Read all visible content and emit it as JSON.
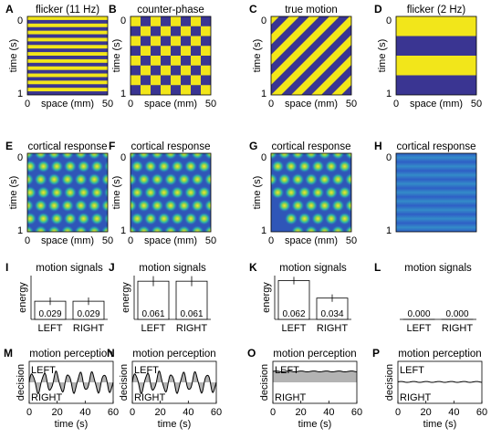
{
  "colors": {
    "yellow": "#f2e61a",
    "navy": "#3a3592",
    "gray": "#b3b3b3"
  },
  "axis_labels": {
    "time": "time (s)",
    "space": "space (mm)",
    "energy": "energy",
    "decision": "decision",
    "zero": "0",
    "one": "1",
    "fifty": "50"
  },
  "chart_data": [
    {
      "letter": "A",
      "title": "flicker (11 Hz)",
      "type": "heatmap",
      "pattern": "horizontal-stripes",
      "stripes": 11,
      "xlabel": "space (mm)",
      "ylabel": "time (s)",
      "xlim": [
        0,
        50
      ],
      "ylim": [
        0,
        1
      ]
    },
    {
      "letter": "B",
      "title": "counter-phase",
      "type": "heatmap",
      "pattern": "checkerboard",
      "cells": 8,
      "xlabel": "space (mm)",
      "ylabel": "time (s)",
      "xlim": [
        0,
        50
      ],
      "ylim": [
        0,
        1
      ]
    },
    {
      "letter": "C",
      "title": "true motion",
      "type": "heatmap",
      "pattern": "diagonal-stripes",
      "xlabel": "space (mm)",
      "ylabel": "time (s)",
      "xlim": [
        0,
        50
      ],
      "ylim": [
        0,
        1
      ]
    },
    {
      "letter": "D",
      "title": "flicker (2 Hz)",
      "type": "heatmap",
      "pattern": "horizontal-stripes",
      "stripes": 2,
      "xlabel": "space (mm)",
      "ylabel": "time (s)",
      "xlim": [
        0,
        50
      ],
      "ylim": [
        0,
        1
      ]
    },
    {
      "letter": "E",
      "title": "cortical response",
      "type": "heatmap",
      "pattern": "blob-grid",
      "xlabel": "space (mm)",
      "ylabel": "time (s)",
      "xlim": [
        0,
        50
      ],
      "ylim": [
        0,
        1
      ]
    },
    {
      "letter": "F",
      "title": "cortical response",
      "type": "heatmap",
      "pattern": "blob-hex",
      "xlabel": "space (mm)",
      "ylabel": "time (s)",
      "xlim": [
        0,
        50
      ],
      "ylim": [
        0,
        1
      ]
    },
    {
      "letter": "G",
      "title": "cortical response",
      "type": "heatmap",
      "pattern": "blob-diagonal",
      "xlabel": "space (mm)",
      "ylabel": "time (s)",
      "xlim": [
        0,
        50
      ],
      "ylim": [
        0,
        1
      ]
    },
    {
      "letter": "H",
      "title": "cortical response",
      "type": "heatmap",
      "pattern": "horizontal-bands",
      "xlabel": "",
      "ylabel": "",
      "xlim": [
        0,
        50
      ],
      "ylim": [
        0,
        1
      ]
    },
    {
      "letter": "I",
      "title": "motion signals",
      "type": "bar",
      "categories": [
        "LEFT",
        "RIGHT"
      ],
      "values": [
        0.029,
        0.029
      ],
      "value_labels": [
        "0.029",
        "0.029"
      ],
      "ylabel": "energy",
      "ylim": [
        0,
        0.07
      ],
      "error": [
        0.006,
        0.006
      ]
    },
    {
      "letter": "J",
      "title": "motion signals",
      "type": "bar",
      "categories": [
        "LEFT",
        "RIGHT"
      ],
      "values": [
        0.061,
        0.061
      ],
      "value_labels": [
        "0.061",
        "0.061"
      ],
      "ylabel": "energy",
      "ylim": [
        0,
        0.07
      ],
      "error": [
        0.008,
        0.008
      ]
    },
    {
      "letter": "K",
      "title": "motion signals",
      "type": "bar",
      "categories": [
        "LEFT",
        "RIGHT"
      ],
      "values": [
        0.062,
        0.034
      ],
      "value_labels": [
        "0.062",
        "0.034"
      ],
      "ylabel": "energy",
      "ylim": [
        0,
        0.07
      ],
      "error": [
        0.006,
        0.006
      ]
    },
    {
      "letter": "L",
      "title": "motion signals",
      "type": "bar",
      "categories": [
        "LEFT",
        "RIGHT"
      ],
      "values": [
        0.0,
        0.0
      ],
      "value_labels": [
        "0.000",
        "0.000"
      ],
      "ylabel": "",
      "ylim": [
        0,
        0.07
      ],
      "error": [
        0,
        0
      ]
    },
    {
      "letter": "M",
      "title": "motion perception",
      "type": "area",
      "xlabel": "time (s)",
      "ylabel": "decision",
      "xlim": [
        0,
        60
      ],
      "ylim": [
        -1,
        1
      ],
      "xticks": [
        0,
        20,
        40,
        60
      ],
      "labels": [
        "LEFT",
        "RIGHT"
      ],
      "mode": "oscillation",
      "cycles": 7,
      "amplitude": 0.55
    },
    {
      "letter": "N",
      "title": "motion perception",
      "type": "area",
      "xlabel": "time (s)",
      "ylabel": "decision",
      "xlim": [
        0,
        60
      ],
      "ylim": [
        -1,
        1
      ],
      "xticks": [
        0,
        20,
        40,
        60
      ],
      "labels": [
        "LEFT",
        "RIGHT"
      ],
      "mode": "oscillation",
      "cycles": 7,
      "amplitude": 0.55
    },
    {
      "letter": "O",
      "title": "motion perception",
      "type": "area",
      "xlabel": "time (s)",
      "ylabel": "decision",
      "xlim": [
        0,
        60
      ],
      "ylim": [
        -1,
        1
      ],
      "xticks": [
        0,
        20,
        40,
        60
      ],
      "labels": [
        "LEFT",
        "RIGHT"
      ],
      "mode": "constant",
      "level": 0.52
    },
    {
      "letter": "P",
      "title": "motion perception",
      "type": "area",
      "xlabel": "time (s)",
      "ylabel": "decision",
      "xlim": [
        0,
        60
      ],
      "ylim": [
        -1,
        1
      ],
      "xticks": [
        0,
        20,
        40,
        60
      ],
      "labels": [
        "LEFT",
        "RIGHT"
      ],
      "mode": "constant",
      "level": 0.02
    }
  ]
}
